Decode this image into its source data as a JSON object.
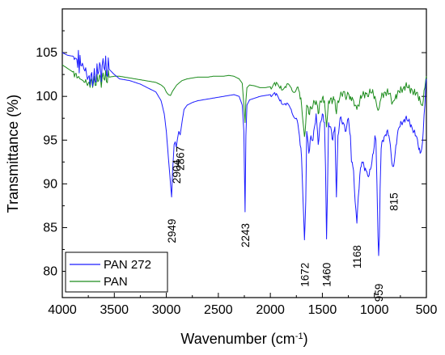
{
  "chart_data": {
    "type": "line",
    "xlabel": "Wavenumber (cm",
    "xlabel_sup": "-1",
    "xlabel_tail": ")",
    "ylabel": "Transmittance (%)",
    "xlim": [
      4000,
      500
    ],
    "ylim": [
      77,
      110
    ],
    "x_reversed": true,
    "x_ticks": [
      4000,
      3500,
      3000,
      2500,
      2000,
      1500,
      1000,
      500
    ],
    "y_ticks": [
      80,
      85,
      90,
      95,
      100,
      105
    ],
    "legend_position": "bottom-left",
    "grid": false,
    "series": [
      {
        "name": "PAN 272",
        "color": "#1c1cff",
        "points": [
          [
            4000,
            105.0
          ],
          [
            3950,
            104.7
          ],
          [
            3900,
            104.6
          ],
          [
            3860,
            104.2
          ],
          [
            3800,
            103.5
          ],
          [
            3750,
            102.2
          ],
          [
            3700,
            102.0
          ],
          [
            3650,
            102.8
          ],
          [
            3600,
            103.3
          ],
          [
            3550,
            103.1
          ],
          [
            3500,
            102.5
          ],
          [
            3450,
            102.0
          ],
          [
            3400,
            101.9
          ],
          [
            3350,
            101.8
          ],
          [
            3300,
            101.6
          ],
          [
            3250,
            101.4
          ],
          [
            3200,
            101.1
          ],
          [
            3150,
            100.8
          ],
          [
            3100,
            100.5
          ],
          [
            3050,
            99.5
          ],
          [
            3020,
            98.0
          ],
          [
            3000,
            96.0
          ],
          [
            2980,
            93.0
          ],
          [
            2960,
            90.0
          ],
          [
            2949,
            88.5
          ],
          [
            2940,
            91.5
          ],
          [
            2925,
            94.5
          ],
          [
            2915,
            94.8
          ],
          [
            2904,
            94.2
          ],
          [
            2895,
            95.0
          ],
          [
            2880,
            96.0
          ],
          [
            2867,
            95.6
          ],
          [
            2850,
            97.0
          ],
          [
            2830,
            98.5
          ],
          [
            2800,
            99.0
          ],
          [
            2750,
            99.3
          ],
          [
            2700,
            99.5
          ],
          [
            2650,
            99.6
          ],
          [
            2600,
            99.7
          ],
          [
            2550,
            99.8
          ],
          [
            2500,
            99.9
          ],
          [
            2450,
            100.0
          ],
          [
            2400,
            100.1
          ],
          [
            2350,
            100.2
          ],
          [
            2300,
            100.0
          ],
          [
            2270,
            99.0
          ],
          [
            2255,
            96.0
          ],
          [
            2243,
            86.8
          ],
          [
            2235,
            95.5
          ],
          [
            2225,
            99.0
          ],
          [
            2200,
            99.6
          ],
          [
            2150,
            99.8
          ],
          [
            2100,
            100.0
          ],
          [
            2050,
            100.1
          ],
          [
            2000,
            100.2
          ],
          [
            1950,
            100.1
          ],
          [
            1900,
            99.6
          ],
          [
            1850,
            99.0
          ],
          [
            1800,
            98.5
          ],
          [
            1750,
            97.5
          ],
          [
            1720,
            95.5
          ],
          [
            1700,
            93.0
          ],
          [
            1685,
            88.0
          ],
          [
            1672,
            83.6
          ],
          [
            1660,
            88.0
          ],
          [
            1650,
            96.0
          ],
          [
            1630,
            93.5
          ],
          [
            1610,
            95.5
          ],
          [
            1590,
            95.0
          ],
          [
            1560,
            98.0
          ],
          [
            1540,
            94.5
          ],
          [
            1520,
            97.0
          ],
          [
            1500,
            98.0
          ],
          [
            1480,
            97.0
          ],
          [
            1470,
            92.0
          ],
          [
            1460,
            83.7
          ],
          [
            1450,
            90.0
          ],
          [
            1440,
            97.0
          ],
          [
            1420,
            96.5
          ],
          [
            1400,
            95.0
          ],
          [
            1380,
            96.5
          ],
          [
            1365,
            88.5
          ],
          [
            1350,
            95.5
          ],
          [
            1330,
            97.5
          ],
          [
            1300,
            97.0
          ],
          [
            1280,
            96.0
          ],
          [
            1250,
            97.5
          ],
          [
            1230,
            95.5
          ],
          [
            1220,
            92.5
          ],
          [
            1200,
            91.5
          ],
          [
            1185,
            88.0
          ],
          [
            1168,
            85.5
          ],
          [
            1155,
            88.5
          ],
          [
            1140,
            91.0
          ],
          [
            1120,
            92.5
          ],
          [
            1100,
            92.0
          ],
          [
            1080,
            91.5
          ],
          [
            1050,
            91.0
          ],
          [
            1030,
            92.0
          ],
          [
            1010,
            93.5
          ],
          [
            995,
            95.5
          ],
          [
            985,
            95.0
          ],
          [
            975,
            90.0
          ],
          [
            965,
            84.0
          ],
          [
            959,
            81.8
          ],
          [
            952,
            84.0
          ],
          [
            945,
            89.5
          ],
          [
            935,
            94.0
          ],
          [
            920,
            95.0
          ],
          [
            900,
            95.5
          ],
          [
            880,
            96.0
          ],
          [
            860,
            95.5
          ],
          [
            840,
            93.5
          ],
          [
            825,
            92.0
          ],
          [
            815,
            92.0
          ],
          [
            800,
            93.5
          ],
          [
            780,
            95.5
          ],
          [
            760,
            96.5
          ],
          [
            740,
            97.0
          ],
          [
            720,
            97.2
          ],
          [
            700,
            97.5
          ],
          [
            680,
            97.2
          ],
          [
            660,
            97.0
          ],
          [
            640,
            96.5
          ],
          [
            620,
            96.0
          ],
          [
            600,
            95.5
          ],
          [
            580,
            94.5
          ],
          [
            560,
            93.5
          ],
          [
            545,
            94.0
          ],
          [
            530,
            96.0
          ],
          [
            515,
            99.0
          ],
          [
            505,
            101.5
          ],
          [
            500,
            102.0
          ]
        ]
      },
      {
        "name": "PAN",
        "color": "#1c8c1c",
        "points": [
          [
            4000,
            103.6
          ],
          [
            3950,
            103.2
          ],
          [
            3900,
            102.8
          ],
          [
            3850,
            102.2
          ],
          [
            3800,
            101.8
          ],
          [
            3750,
            101.5
          ],
          [
            3700,
            101.6
          ],
          [
            3650,
            101.8
          ],
          [
            3600,
            102.0
          ],
          [
            3550,
            102.2
          ],
          [
            3500,
            102.3
          ],
          [
            3450,
            102.3
          ],
          [
            3400,
            102.2
          ],
          [
            3350,
            102.1
          ],
          [
            3300,
            102.0
          ],
          [
            3250,
            101.9
          ],
          [
            3200,
            101.8
          ],
          [
            3150,
            101.7
          ],
          [
            3100,
            101.6
          ],
          [
            3050,
            101.3
          ],
          [
            3020,
            101.0
          ],
          [
            3000,
            100.5
          ],
          [
            2980,
            100.2
          ],
          [
            2960,
            100.1
          ],
          [
            2940,
            100.6
          ],
          [
            2900,
            101.3
          ],
          [
            2850,
            101.8
          ],
          [
            2800,
            102.0
          ],
          [
            2750,
            102.1
          ],
          [
            2700,
            102.2
          ],
          [
            2650,
            102.2
          ],
          [
            2600,
            102.2
          ],
          [
            2550,
            102.3
          ],
          [
            2500,
            102.3
          ],
          [
            2450,
            102.3
          ],
          [
            2400,
            102.4
          ],
          [
            2350,
            102.3
          ],
          [
            2300,
            102.0
          ],
          [
            2270,
            101.5
          ],
          [
            2255,
            99.0
          ],
          [
            2243,
            97.0
          ],
          [
            2235,
            99.5
          ],
          [
            2225,
            101.0
          ],
          [
            2200,
            101.3
          ],
          [
            2150,
            101.2
          ],
          [
            2100,
            101.0
          ],
          [
            2050,
            101.0
          ],
          [
            2000,
            101.1
          ],
          [
            1950,
            101.2
          ],
          [
            1900,
            101.2
          ],
          [
            1850,
            101.0
          ],
          [
            1800,
            101.0
          ],
          [
            1750,
            100.8
          ],
          [
            1720,
            100.5
          ],
          [
            1700,
            99.0
          ],
          [
            1685,
            97.0
          ],
          [
            1672,
            95.4
          ],
          [
            1660,
            97.0
          ],
          [
            1650,
            99.0
          ],
          [
            1630,
            98.0
          ],
          [
            1610,
            98.8
          ],
          [
            1590,
            99.0
          ],
          [
            1560,
            99.5
          ],
          [
            1540,
            98.0
          ],
          [
            1520,
            99.5
          ],
          [
            1500,
            99.8
          ],
          [
            1480,
            99.5
          ],
          [
            1470,
            98.0
          ],
          [
            1460,
            96.5
          ],
          [
            1450,
            98.0
          ],
          [
            1440,
            99.5
          ],
          [
            1420,
            99.8
          ],
          [
            1400,
            99.5
          ],
          [
            1380,
            99.6
          ],
          [
            1365,
            98.0
          ],
          [
            1350,
            99.5
          ],
          [
            1330,
            100.0
          ],
          [
            1300,
            100.5
          ],
          [
            1280,
            100.0
          ],
          [
            1250,
            100.3
          ],
          [
            1230,
            100.0
          ],
          [
            1220,
            99.5
          ],
          [
            1200,
            99.5
          ],
          [
            1185,
            99.0
          ],
          [
            1168,
            98.5
          ],
          [
            1155,
            99.0
          ],
          [
            1140,
            99.5
          ],
          [
            1120,
            100.0
          ],
          [
            1100,
            100.2
          ],
          [
            1080,
            100.3
          ],
          [
            1050,
            100.4
          ],
          [
            1030,
            100.4
          ],
          [
            1010,
            100.3
          ],
          [
            995,
            100.0
          ],
          [
            985,
            99.5
          ],
          [
            975,
            98.8
          ],
          [
            965,
            98.4
          ],
          [
            959,
            98.5
          ],
          [
            952,
            98.8
          ],
          [
            945,
            99.4
          ],
          [
            935,
            99.8
          ],
          [
            920,
            100.2
          ],
          [
            900,
            100.5
          ],
          [
            880,
            100.5
          ],
          [
            860,
            100.3
          ],
          [
            840,
            99.8
          ],
          [
            825,
            99.3
          ],
          [
            815,
            99.5
          ],
          [
            800,
            99.8
          ],
          [
            780,
            100.2
          ],
          [
            760,
            100.5
          ],
          [
            740,
            100.8
          ],
          [
            720,
            101.0
          ],
          [
            700,
            101.2
          ],
          [
            680,
            101.0
          ],
          [
            660,
            100.8
          ],
          [
            640,
            100.8
          ],
          [
            620,
            100.5
          ],
          [
            600,
            100.3
          ],
          [
            580,
            100.0
          ],
          [
            560,
            99.5
          ],
          [
            545,
            99.0
          ],
          [
            530,
            99.5
          ],
          [
            515,
            101.0
          ],
          [
            505,
            102.0
          ],
          [
            500,
            102.3
          ]
        ]
      }
    ],
    "annotations": [
      {
        "text": "2949",
        "x": 2949,
        "y": 86.0
      },
      {
        "text": "2904",
        "x": 2904,
        "y": 92.8
      },
      {
        "text": "2867",
        "x": 2867,
        "y": 94.3
      },
      {
        "text": "2243",
        "x": 2243,
        "y": 85.5
      },
      {
        "text": "1672",
        "x": 1672,
        "y": 81.0
      },
      {
        "text": "1460",
        "x": 1460,
        "y": 81.0
      },
      {
        "text": "1168",
        "x": 1168,
        "y": 83.0
      },
      {
        "text": "959",
        "x": 959,
        "y": 78.6
      },
      {
        "text": "815",
        "x": 815,
        "y": 89.0
      }
    ]
  }
}
